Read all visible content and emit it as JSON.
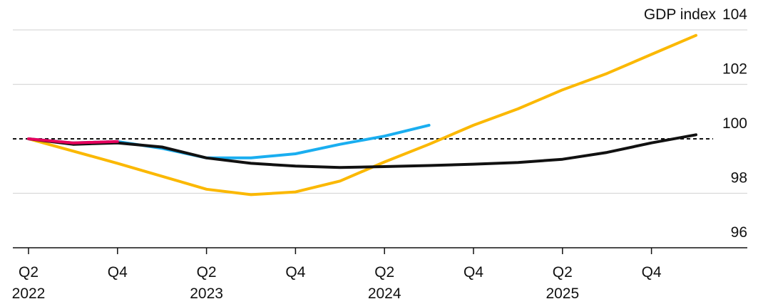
{
  "chart_data": {
    "type": "line",
    "title": "",
    "xlabel": "",
    "ylabel": "GDP index",
    "ylim": [
      96,
      104
    ],
    "grid": true,
    "baseline": 100,
    "x_ticks": [
      {
        "q": "Q2",
        "year": "2022",
        "pos": 0
      },
      {
        "q": "Q4",
        "year": "",
        "pos": 2
      },
      {
        "q": "Q2",
        "year": "2023",
        "pos": 4
      },
      {
        "q": "Q4",
        "year": "",
        "pos": 6
      },
      {
        "q": "Q2",
        "year": "2024",
        "pos": 8
      },
      {
        "q": "Q4",
        "year": "",
        "pos": 10
      },
      {
        "q": "Q2",
        "year": "2025",
        "pos": 12
      },
      {
        "q": "Q4",
        "year": "",
        "pos": 14
      }
    ],
    "y_ticks": [
      {
        "value": 96,
        "label": "96"
      },
      {
        "value": 98,
        "label": "98"
      },
      {
        "value": 100,
        "label": "100"
      },
      {
        "value": 102,
        "label": "102"
      },
      {
        "value": 104,
        "label": "104"
      }
    ],
    "series": [
      {
        "color": "#fbb800",
        "points": [
          [
            0,
            100
          ],
          [
            2,
            99.1
          ],
          [
            4,
            98.15
          ],
          [
            5,
            97.95
          ],
          [
            6,
            98.05
          ],
          [
            7,
            98.45
          ],
          [
            8,
            99.15
          ],
          [
            9,
            99.8
          ],
          [
            10,
            100.5
          ],
          [
            11,
            101.1
          ],
          [
            12,
            101.8
          ],
          [
            13,
            102.4
          ],
          [
            14,
            103.1
          ],
          [
            15,
            103.8
          ]
        ]
      },
      {
        "color": "#1aaef0",
        "points": [
          [
            0,
            100
          ],
          [
            1,
            99.85
          ],
          [
            2,
            99.9
          ],
          [
            3,
            99.65
          ],
          [
            4,
            99.3
          ],
          [
            5,
            99.3
          ],
          [
            6,
            99.45
          ],
          [
            7,
            99.8
          ],
          [
            8,
            100.1
          ],
          [
            9,
            100.5
          ]
        ]
      },
      {
        "color": "#111111",
        "points": [
          [
            0,
            100
          ],
          [
            1,
            99.8
          ],
          [
            2,
            99.85
          ],
          [
            3,
            99.7
          ],
          [
            4,
            99.3
          ],
          [
            5,
            99.1
          ],
          [
            6,
            99.0
          ],
          [
            7,
            98.95
          ],
          [
            8,
            98.98
          ],
          [
            9,
            99.02
          ],
          [
            10,
            99.07
          ],
          [
            11,
            99.13
          ],
          [
            12,
            99.25
          ],
          [
            13,
            99.5
          ],
          [
            14,
            99.85
          ],
          [
            15,
            100.15
          ]
        ]
      },
      {
        "color": "#e6005c",
        "points": [
          [
            0,
            100
          ],
          [
            1,
            99.85
          ],
          [
            2,
            99.9
          ]
        ]
      }
    ]
  }
}
